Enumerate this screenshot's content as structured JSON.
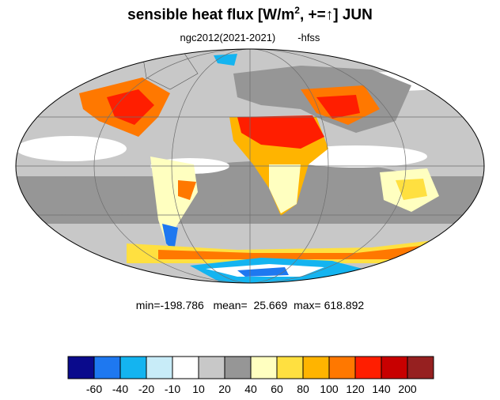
{
  "title": {
    "main": "sensible heat flux [W/m",
    "sup": "2",
    "tail": ", +=",
    "arrow": "↑",
    "month": "]  JUN"
  },
  "subtitle": {
    "experiment": "ngc2012(2021-2021)",
    "variable": "-hfss"
  },
  "stats": {
    "min_label": "min=",
    "min": "-198.786",
    "mean_label": "mean=",
    "mean": "25.669",
    "max_label": "max=",
    "max": "618.892"
  },
  "colorbar": {
    "colors": [
      "#0a0a8c",
      "#1e78f0",
      "#14b4f0",
      "#c8ecf8",
      "#ffffff",
      "#c8c8c8",
      "#969696",
      "#ffffc0",
      "#ffe040",
      "#ffb400",
      "#ff7800",
      "#ff1e00",
      "#c80000",
      "#962020"
    ],
    "labels": [
      "-60",
      "-40",
      "-20",
      "-10",
      "10",
      "20",
      "40",
      "60",
      "80",
      "100",
      "120",
      "140",
      "200"
    ]
  }
}
